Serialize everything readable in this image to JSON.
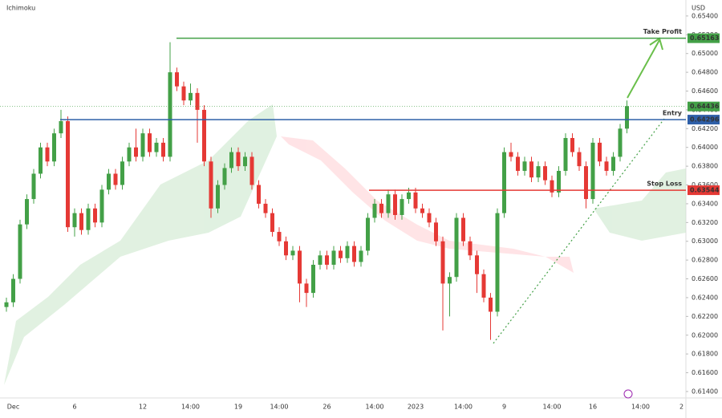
{
  "chart_data": {
    "type": "candlestick",
    "title": "Ichimoku",
    "currency": "USD",
    "up_color": "#43a047",
    "down_color": "#e53935",
    "ylim": [
      0.6134,
      0.6557
    ],
    "yticks": [
      {
        "value": 0.654,
        "label": "0.65400"
      },
      {
        "value": 0.652,
        "label": "0.65200"
      },
      {
        "value": 0.65,
        "label": "0.65000"
      },
      {
        "value": 0.648,
        "label": "0.64800"
      },
      {
        "value": 0.646,
        "label": "0.64600"
      },
      {
        "value": 0.644,
        "label": "0.64400"
      },
      {
        "value": 0.642,
        "label": "0.64200"
      },
      {
        "value": 0.64,
        "label": "0.64000"
      },
      {
        "value": 0.638,
        "label": "0.63800"
      },
      {
        "value": 0.636,
        "label": "0.63600"
      },
      {
        "value": 0.634,
        "label": "0.63400"
      },
      {
        "value": 0.632,
        "label": "0.63200"
      },
      {
        "value": 0.63,
        "label": "0.63000"
      },
      {
        "value": 0.628,
        "label": "0.62800"
      },
      {
        "value": 0.626,
        "label": "0.62600"
      },
      {
        "value": 0.624,
        "label": "0.62400"
      },
      {
        "value": 0.622,
        "label": "0.62200"
      },
      {
        "value": 0.62,
        "label": "0.62000"
      },
      {
        "value": 0.618,
        "label": "0.61800"
      },
      {
        "value": 0.616,
        "label": "0.61600"
      },
      {
        "value": 0.614,
        "label": "0.61400"
      }
    ],
    "categories": [
      null,
      "Dec",
      null,
      null,
      null,
      null,
      null,
      null,
      null,
      null,
      "6",
      null,
      null,
      null,
      null,
      null,
      null,
      null,
      null,
      null,
      "12",
      null,
      null,
      null,
      null,
      null,
      null,
      "14:00",
      null,
      null,
      null,
      null,
      null,
      null,
      "19",
      null,
      null,
      null,
      null,
      null,
      "14:00",
      null,
      null,
      null,
      null,
      null,
      null,
      "26",
      null,
      null,
      null,
      null,
      null,
      null,
      "14:00",
      null,
      null,
      null,
      null,
      null,
      "2023",
      null,
      null,
      null,
      null,
      null,
      null,
      "14:00",
      null,
      null,
      null,
      null,
      null,
      "9",
      null,
      null,
      null,
      null,
      null,
      null,
      "14:00",
      null,
      null,
      null,
      null,
      null,
      "16",
      null,
      null,
      null,
      null,
      null,
      null,
      "14:00",
      null,
      null,
      null,
      null,
      null,
      "2"
    ],
    "ohlc": [
      [
        0.623,
        0.624,
        0.6225,
        0.6235
      ],
      [
        0.6235,
        0.6265,
        0.623,
        0.626
      ],
      [
        0.626,
        0.6323,
        0.6255,
        0.6318
      ],
      [
        0.6318,
        0.635,
        0.6313,
        0.6345
      ],
      [
        0.6345,
        0.6377,
        0.634,
        0.6372
      ],
      [
        0.6372,
        0.6405,
        0.6367,
        0.64
      ],
      [
        0.64,
        0.6405,
        0.638,
        0.6385
      ],
      [
        0.6385,
        0.642,
        0.638,
        0.6415
      ],
      [
        0.6415,
        0.644,
        0.641,
        0.6428
      ],
      [
        0.6428,
        0.6433,
        0.631,
        0.6315
      ],
      [
        0.6315,
        0.6335,
        0.6305,
        0.633
      ],
      [
        0.633,
        0.6335,
        0.6307,
        0.6312
      ],
      [
        0.6312,
        0.634,
        0.6307,
        0.6335
      ],
      [
        0.6335,
        0.634,
        0.6315,
        0.632
      ],
      [
        0.632,
        0.636,
        0.6315,
        0.6355
      ],
      [
        0.6355,
        0.6377,
        0.635,
        0.6372
      ],
      [
        0.6372,
        0.6377,
        0.6355,
        0.636
      ],
      [
        0.636,
        0.639,
        0.6355,
        0.6385
      ],
      [
        0.6385,
        0.6405,
        0.638,
        0.64
      ],
      [
        0.64,
        0.642,
        0.6385,
        0.639
      ],
      [
        0.639,
        0.642,
        0.6385,
        0.6415
      ],
      [
        0.6415,
        0.642,
        0.639,
        0.6395
      ],
      [
        0.6395,
        0.641,
        0.639,
        0.6405
      ],
      [
        0.6405,
        0.641,
        0.6385,
        0.639
      ],
      [
        0.639,
        0.6512,
        0.6385,
        0.648
      ],
      [
        0.648,
        0.6485,
        0.646,
        0.6465
      ],
      [
        0.6465,
        0.647,
        0.6445,
        0.645
      ],
      [
        0.645,
        0.6468,
        0.6445,
        0.6458
      ],
      [
        0.6458,
        0.6463,
        0.6405,
        0.644
      ],
      [
        0.644,
        0.6445,
        0.638,
        0.6385
      ],
      [
        0.6385,
        0.639,
        0.6325,
        0.6335
      ],
      [
        0.6335,
        0.6365,
        0.633,
        0.636
      ],
      [
        0.636,
        0.6383,
        0.6355,
        0.6378
      ],
      [
        0.6378,
        0.64,
        0.6373,
        0.6395
      ],
      [
        0.6395,
        0.64,
        0.6375,
        0.638
      ],
      [
        0.638,
        0.6395,
        0.6375,
        0.639
      ],
      [
        0.639,
        0.6395,
        0.6355,
        0.636
      ],
      [
        0.636,
        0.6365,
        0.6335,
        0.634
      ],
      [
        0.634,
        0.6345,
        0.6325,
        0.633
      ],
      [
        0.633,
        0.6335,
        0.6305,
        0.631
      ],
      [
        0.631,
        0.6315,
        0.6295,
        0.63
      ],
      [
        0.63,
        0.6305,
        0.628,
        0.6285
      ],
      [
        0.6285,
        0.6295,
        0.628,
        0.629
      ],
      [
        0.629,
        0.6295,
        0.6235,
        0.6255
      ],
      [
        0.6255,
        0.626,
        0.623,
        0.6245
      ],
      [
        0.6245,
        0.628,
        0.624,
        0.6275
      ],
      [
        0.6275,
        0.629,
        0.627,
        0.6285
      ],
      [
        0.6285,
        0.629,
        0.627,
        0.6275
      ],
      [
        0.6275,
        0.6295,
        0.627,
        0.629
      ],
      [
        0.629,
        0.6295,
        0.6277,
        0.6282
      ],
      [
        0.6282,
        0.63,
        0.6277,
        0.6295
      ],
      [
        0.6295,
        0.63,
        0.6273,
        0.6278
      ],
      [
        0.6278,
        0.6295,
        0.6273,
        0.629
      ],
      [
        0.629,
        0.633,
        0.6285,
        0.6325
      ],
      [
        0.6325,
        0.6345,
        0.632,
        0.634
      ],
      [
        0.634,
        0.6345,
        0.6325,
        0.633
      ],
      [
        0.633,
        0.6355,
        0.6325,
        0.635
      ],
      [
        0.635,
        0.6355,
        0.6323,
        0.6328
      ],
      [
        0.6328,
        0.635,
        0.6323,
        0.6345
      ],
      [
        0.6345,
        0.6357,
        0.634,
        0.6352
      ],
      [
        0.6352,
        0.6357,
        0.633,
        0.6335
      ],
      [
        0.6335,
        0.634,
        0.6325,
        0.633
      ],
      [
        0.633,
        0.6335,
        0.6315,
        0.632
      ],
      [
        0.632,
        0.6325,
        0.6295,
        0.63
      ],
      [
        0.63,
        0.6305,
        0.6205,
        0.6255
      ],
      [
        0.6255,
        0.6267,
        0.622,
        0.6262
      ],
      [
        0.6262,
        0.633,
        0.6257,
        0.6325
      ],
      [
        0.6325,
        0.633,
        0.6295,
        0.63
      ],
      [
        0.63,
        0.6305,
        0.628,
        0.6285
      ],
      [
        0.6285,
        0.629,
        0.6245,
        0.6265
      ],
      [
        0.6265,
        0.627,
        0.6235,
        0.624
      ],
      [
        0.624,
        0.6245,
        0.6195,
        0.6225
      ],
      [
        0.6225,
        0.6335,
        0.622,
        0.633
      ],
      [
        0.633,
        0.64,
        0.6325,
        0.6395
      ],
      [
        0.6395,
        0.6405,
        0.6385,
        0.639
      ],
      [
        0.639,
        0.6395,
        0.637,
        0.6375
      ],
      [
        0.6375,
        0.639,
        0.637,
        0.6385
      ],
      [
        0.6385,
        0.639,
        0.6363,
        0.6368
      ],
      [
        0.6368,
        0.6385,
        0.6363,
        0.638
      ],
      [
        0.638,
        0.6385,
        0.636,
        0.6365
      ],
      [
        0.6365,
        0.637,
        0.6347,
        0.6352
      ],
      [
        0.6352,
        0.638,
        0.6347,
        0.6375
      ],
      [
        0.6375,
        0.6415,
        0.637,
        0.641
      ],
      [
        0.641,
        0.6415,
        0.639,
        0.6395
      ],
      [
        0.6395,
        0.64,
        0.6375,
        0.638
      ],
      [
        0.638,
        0.6385,
        0.6335,
        0.6345
      ],
      [
        0.6345,
        0.641,
        0.634,
        0.6405
      ],
      [
        0.6405,
        0.641,
        0.638,
        0.6385
      ],
      [
        0.6385,
        0.639,
        0.637,
        0.6375
      ],
      [
        0.6375,
        0.6395,
        0.637,
        0.639
      ],
      [
        0.639,
        0.6425,
        0.6385,
        0.642
      ],
      [
        0.642,
        0.645,
        0.6415,
        0.6444
      ],
      null,
      null,
      null,
      null,
      null,
      null,
      null,
      null
    ],
    "last_price": {
      "value": 0.64436,
      "color": "#43a047"
    },
    "levels": [
      {
        "name": "Take Profit",
        "value": 0.65163,
        "color": "#43a047"
      },
      {
        "name": "Entry",
        "value": 0.64296,
        "color": "#2e5fa8"
      },
      {
        "name": "Stop Loss",
        "value": 0.63544,
        "color": "#e53935"
      }
    ]
  }
}
